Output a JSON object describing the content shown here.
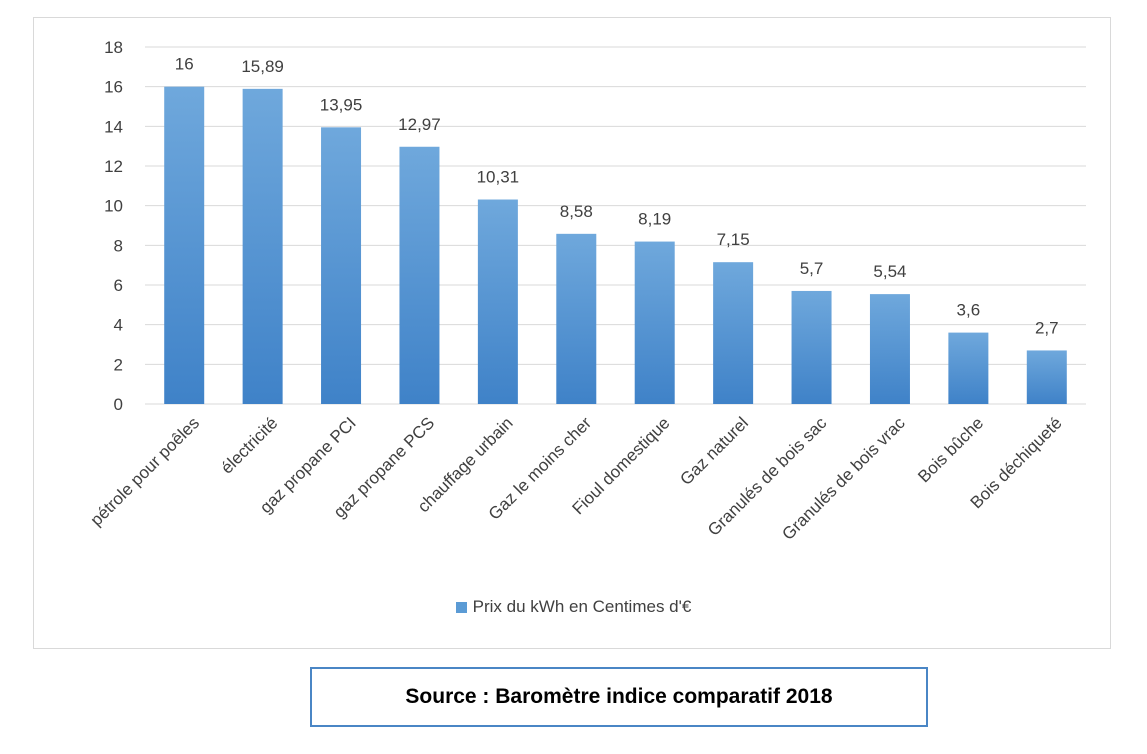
{
  "chart_data": {
    "type": "bar",
    "categories": [
      "pétrole pour poêles",
      "électricité",
      "gaz propane PCI",
      "gaz propane PCS",
      "chauffage urbain",
      "Gaz le moins cher",
      "Fioul domestique",
      "Gaz naturel",
      "Granulés de bois sac",
      "Granulés de bois vrac",
      "Bois bûche",
      "Bois déchiqueté"
    ],
    "series": [
      {
        "name": "Prix du kWh en Centimes d'€",
        "values": [
          16,
          15.89,
          13.95,
          12.97,
          10.31,
          8.58,
          8.19,
          7.15,
          5.7,
          5.54,
          3.6,
          2.7
        ],
        "labels": [
          "16",
          "15,89",
          "13,95",
          "12,97",
          "10,31",
          "8,58",
          "8,19",
          "7,15",
          "5,7",
          "5,54",
          "3,6",
          "2,7"
        ],
        "color": "#5b9bd5"
      }
    ],
    "ylim": [
      0,
      18
    ],
    "yticks": [
      0,
      2,
      4,
      6,
      8,
      10,
      12,
      14,
      16,
      18
    ],
    "grid": true,
    "legend_position": "bottom"
  },
  "legend": {
    "label": "Prix du kWh en Centimes d'€"
  },
  "source": {
    "text": "Source : Baromètre indice comparatif 2018"
  }
}
